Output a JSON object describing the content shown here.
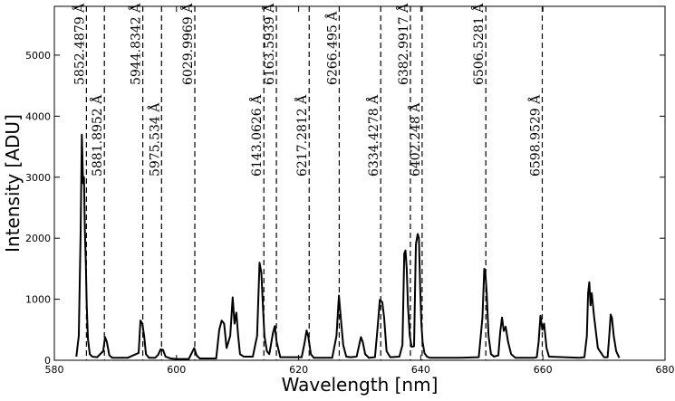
{
  "chart_data": {
    "type": "line",
    "title": "",
    "xlabel": "Wavelength [nm]",
    "ylabel": "Intensity [ADU]",
    "xlim": [
      580,
      680
    ],
    "ylim": [
      0,
      5800
    ],
    "xticks": [
      "580",
      "600",
      "620",
      "640",
      "660",
      "680"
    ],
    "yticks": [
      "0",
      "1000",
      "2000",
      "3000",
      "4000",
      "5000"
    ],
    "grid": false,
    "legend": "none",
    "series": [
      {
        "color": "#000000",
        "x": [
          583.6,
          584.0,
          584.3,
          584.5,
          584.7,
          584.85,
          585.0,
          585.15,
          585.3,
          585.5,
          585.8,
          586.2,
          587.0,
          588.0,
          588.3,
          588.6,
          589.0,
          589.5,
          592.0,
          593.8,
          594.1,
          594.4,
          594.7,
          595.0,
          595.5,
          596.5,
          597.0,
          597.4,
          597.8,
          598.2,
          599.0,
          600.0,
          602.0,
          602.5,
          602.9,
          603.3,
          603.8,
          606.5,
          607.0,
          607.4,
          607.8,
          608.2,
          608.8,
          609.2,
          609.5,
          609.8,
          610.1,
          610.4,
          611.0,
          612.5,
          613.2,
          613.6,
          613.9,
          614.1,
          614.4,
          614.8,
          615.2,
          615.8,
          616.1,
          616.4,
          617.0,
          620.5,
          621.0,
          621.3,
          621.6,
          622.0,
          622.5,
          625.5,
          626.2,
          626.6,
          626.9,
          627.3,
          627.8,
          628.5,
          629.5,
          630.2,
          630.5,
          630.9,
          631.5,
          632.5,
          632.9,
          633.3,
          633.7,
          634.0,
          634.4,
          635.0,
          636.5,
          637.0,
          637.3,
          637.5,
          637.7,
          637.9,
          638.2,
          638.5,
          638.9,
          639.2,
          639.5,
          639.7,
          639.9,
          640.1,
          640.3,
          640.6,
          641.0,
          641.5,
          642.5,
          643.5,
          646.0,
          649.5,
          650.1,
          650.4,
          650.6,
          650.8,
          651.1,
          651.5,
          652.0,
          652.7,
          653.0,
          653.3,
          653.6,
          653.9,
          654.3,
          654.8,
          655.5,
          658.5,
          659.0,
          659.3,
          659.6,
          659.9,
          660.2,
          660.6,
          661.0,
          666.0,
          666.8,
          667.2,
          667.4,
          667.6,
          667.8,
          668.0,
          668.4,
          669.0,
          670.0,
          670.6,
          670.9,
          671.1,
          671.3,
          671.6,
          672.0,
          672.5
        ],
        "y": [
          60,
          400,
          2080,
          3700,
          2900,
          3000,
          2100,
          1600,
          900,
          350,
          100,
          60,
          50,
          150,
          380,
          300,
          80,
          40,
          40,
          120,
          650,
          600,
          400,
          100,
          40,
          40,
          90,
          180,
          170,
          60,
          30,
          20,
          20,
          120,
          200,
          80,
          30,
          30,
          500,
          650,
          600,
          200,
          400,
          1030,
          600,
          780,
          400,
          100,
          60,
          60,
          400,
          1600,
          1430,
          1000,
          400,
          150,
          100,
          450,
          560,
          300,
          50,
          50,
          300,
          490,
          380,
          100,
          40,
          40,
          400,
          1060,
          700,
          250,
          60,
          50,
          60,
          380,
          300,
          100,
          40,
          50,
          500,
          990,
          950,
          700,
          150,
          50,
          60,
          250,
          1750,
          1800,
          1500,
          900,
          400,
          220,
          230,
          1900,
          2070,
          2000,
          1200,
          600,
          300,
          120,
          60,
          40,
          40,
          40,
          40,
          50,
          700,
          1500,
          1400,
          1100,
          400,
          100,
          60,
          80,
          450,
          700,
          480,
          550,
          300,
          100,
          40,
          40,
          50,
          300,
          730,
          500,
          600,
          200,
          60,
          40,
          50,
          400,
          1100,
          1280,
          900,
          1100,
          700,
          200,
          50,
          50,
          450,
          750,
          700,
          400,
          150,
          40
        ]
      }
    ],
    "annotations": [
      {
        "x": 585.24879,
        "label": "5852.4879 Å",
        "level": "high"
      },
      {
        "x": 588.18952,
        "label": "5881.8952 Å",
        "level": "low"
      },
      {
        "x": 594.48342,
        "label": "5944.8342 Å",
        "level": "high"
      },
      {
        "x": 597.5534,
        "label": "5975.534 Å",
        "level": "low"
      },
      {
        "x": 602.99969,
        "label": "6029.9969 Å",
        "level": "high"
      },
      {
        "x": 614.30626,
        "label": "6143.0626 Å",
        "level": "low"
      },
      {
        "x": 616.35939,
        "label": "6163.5939 Å",
        "level": "high"
      },
      {
        "x": 621.72812,
        "label": "6217.2812 Å",
        "level": "low"
      },
      {
        "x": 626.6495,
        "label": "6266.495 Å",
        "level": "high"
      },
      {
        "x": 633.44278,
        "label": "6334.4278 Å",
        "level": "low"
      },
      {
        "x": 638.29917,
        "label": "6382.9917 Å",
        "level": "high"
      },
      {
        "x": 640.2248,
        "label": "6402.248 Å",
        "level": "low"
      },
      {
        "x": 650.65281,
        "label": "6506.5281 Å",
        "level": "high"
      },
      {
        "x": 659.89529,
        "label": "6598.9529 Å",
        "level": "low"
      }
    ]
  }
}
